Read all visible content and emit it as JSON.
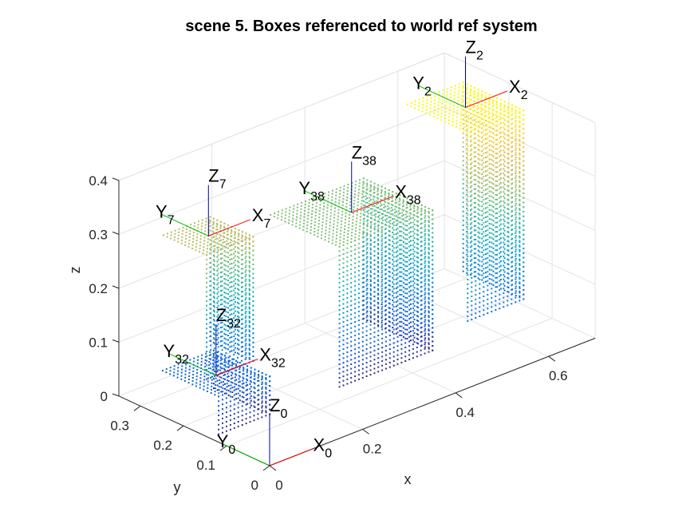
{
  "chart_data": {
    "type": "scatter3d",
    "title": "scene 5. Boxes referenced to world ref system",
    "xlabel": "x",
    "ylabel": "y",
    "zlabel": "z",
    "xlim": [
      0,
      0.7
    ],
    "ylim": [
      0,
      0.35
    ],
    "zlim": [
      0,
      0.4
    ],
    "grid": true,
    "x_ticks": [
      "0",
      "0.2",
      "0.4",
      "0.6"
    ],
    "y_ticks": [
      "0",
      "0.1",
      "0.2",
      "0.3"
    ],
    "z_ticks": [
      "0",
      "0.1",
      "0.2",
      "0.3",
      "0.4"
    ],
    "colormap": "parula",
    "colormap_colors": [
      "#352A87",
      "#0F5CDD",
      "#1481D6",
      "#06A4CA",
      "#2EB7A4",
      "#87BF77",
      "#D1BB59",
      "#FEC832",
      "#F9FB0E"
    ],
    "axis_colors": {
      "x": "#FF0000",
      "y": "#00C000",
      "z": "#0000A0"
    },
    "frames": [
      {
        "label": "0",
        "letter_x": "X",
        "letter_y": "Y",
        "letter_z": "Z",
        "origin": [
          0,
          0,
          0
        ]
      },
      {
        "label": "32",
        "letter_x": "X",
        "letter_y": "Y",
        "letter_z": "Z",
        "origin": [
          0.07,
          0.2,
          0.07
        ]
      },
      {
        "label": "7",
        "letter_x": "X",
        "letter_y": "Y",
        "letter_z": "Z",
        "origin": [
          0.1,
          0.25,
          0.3
        ]
      },
      {
        "label": "38",
        "letter_x": "X",
        "letter_y": "Y",
        "letter_z": "Z",
        "origin": [
          0.38,
          0.22,
          0.26
        ]
      },
      {
        "label": "2",
        "letter_x": "X",
        "letter_y": "Y",
        "letter_z": "Z",
        "origin": [
          0.56,
          0.15,
          0.42
        ]
      }
    ],
    "boxes": [
      {
        "name": "box 32",
        "frame": "32",
        "x": [
          0.02,
          0.13
        ],
        "y": [
          0.14,
          0.27
        ],
        "z": [
          0.0,
          0.07
        ]
      },
      {
        "name": "box 7",
        "frame": "7",
        "x": [
          0.05,
          0.15
        ],
        "y": [
          0.2,
          0.3
        ],
        "z": [
          0.07,
          0.3
        ]
      },
      {
        "name": "box 38",
        "frame": "38",
        "x": [
          0.28,
          0.48
        ],
        "y": [
          0.14,
          0.3
        ],
        "z": [
          0.0,
          0.26
        ]
      },
      {
        "name": "box 2",
        "frame": "2",
        "x": [
          0.5,
          0.62
        ],
        "y": [
          0.08,
          0.22
        ],
        "z": [
          0.07,
          0.42
        ]
      }
    ]
  }
}
